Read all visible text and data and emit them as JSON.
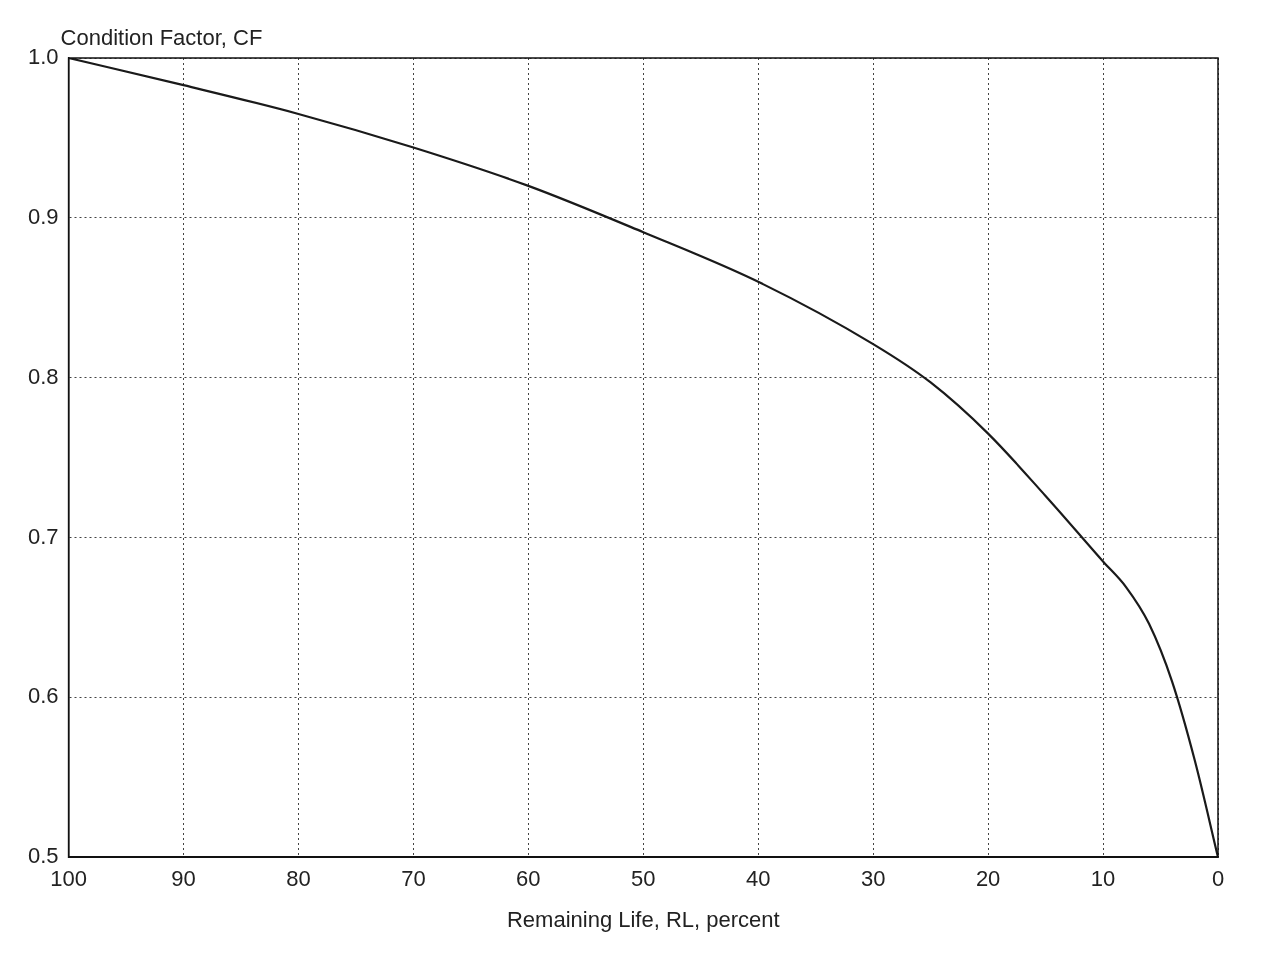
{
  "chart_data": {
    "type": "line",
    "ylabel": "Condition Factor, CF",
    "xlabel": "Remaining Life, RL, percent",
    "x": [
      100,
      90,
      80,
      70,
      60,
      50,
      40,
      30,
      25,
      20,
      15,
      10,
      8,
      6,
      4,
      2,
      0
    ],
    "series": [
      {
        "color": "#1a1a1a",
        "values": [
          1.0,
          0.983,
          0.965,
          0.944,
          0.92,
          0.891,
          0.86,
          0.821,
          0.797,
          0.765,
          0.726,
          0.685,
          0.669,
          0.646,
          0.61,
          0.56,
          0.5
        ]
      }
    ],
    "xlim": [
      100,
      0
    ],
    "xticks": [
      100,
      90,
      80,
      70,
      60,
      50,
      40,
      30,
      20,
      10,
      0
    ],
    "ylim": [
      0.5,
      1.0
    ],
    "yticks": [
      0.5,
      0.6,
      0.7,
      0.8,
      0.9,
      {
        "value": 1,
        "label": "1.0"
      }
    ],
    "grid": true,
    "legend": false,
    "marker": "none",
    "line_style": "solid"
  }
}
